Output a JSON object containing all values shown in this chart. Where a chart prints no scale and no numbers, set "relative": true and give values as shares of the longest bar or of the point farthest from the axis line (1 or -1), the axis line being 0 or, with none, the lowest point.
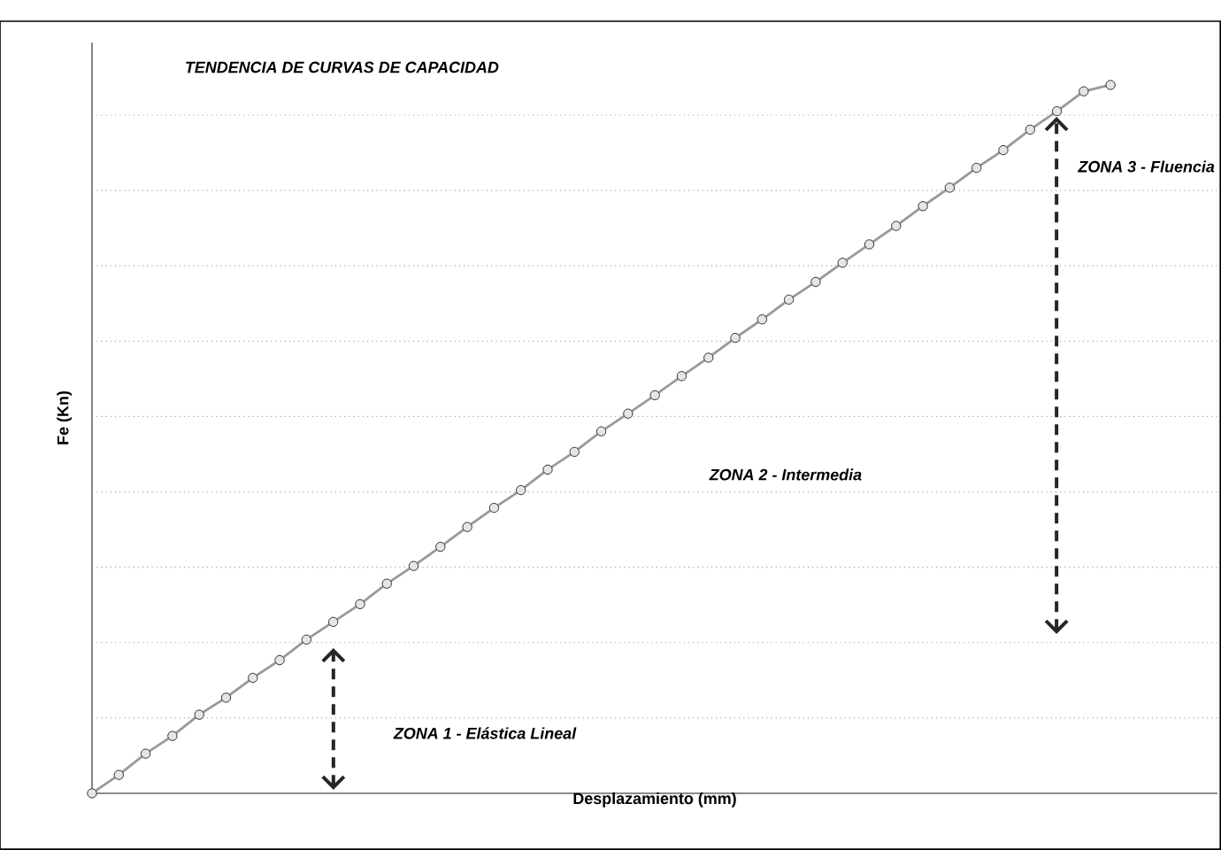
{
  "chart_data": {
    "type": "line",
    "relative": true,
    "title": "TENDENCIA DE CURVAS DE CAPACIDAD",
    "xlabel": "Desplazamiento (mm)",
    "ylabel": "Fe (Kn)",
    "annotations": [
      "ZONA 1 - Elástica Lineal",
      "ZONA 2 - Intermedia",
      "ZONA 3 - Fluencia"
    ],
    "grid": "y",
    "marker": "circle",
    "line_style": "solid",
    "tick_labels": false,
    "categories": [
      null,
      null,
      null,
      null,
      null,
      null,
      null,
      null,
      null,
      null,
      null,
      null,
      null,
      null,
      null,
      null,
      null,
      null,
      null,
      null,
      null,
      null,
      null,
      null,
      null,
      null,
      null,
      null,
      null,
      null,
      null,
      null,
      null,
      null,
      null,
      null,
      null,
      null,
      null
    ],
    "series": [
      {
        "color": "#999999",
        "values": [
          0,
          0.026,
          0.056,
          0.081,
          0.111,
          0.135,
          0.163,
          0.188,
          0.217,
          0.242,
          0.267,
          0.296,
          0.321,
          0.348,
          0.376,
          0.403,
          0.428,
          0.457,
          0.482,
          0.511,
          0.536,
          0.562,
          0.589,
          0.615,
          0.643,
          0.669,
          0.697,
          0.722,
          0.749,
          0.775,
          0.801,
          0.829,
          0.855,
          0.883,
          0.908,
          0.937,
          0.963,
          0.991,
          1
        ]
      }
    ]
  }
}
